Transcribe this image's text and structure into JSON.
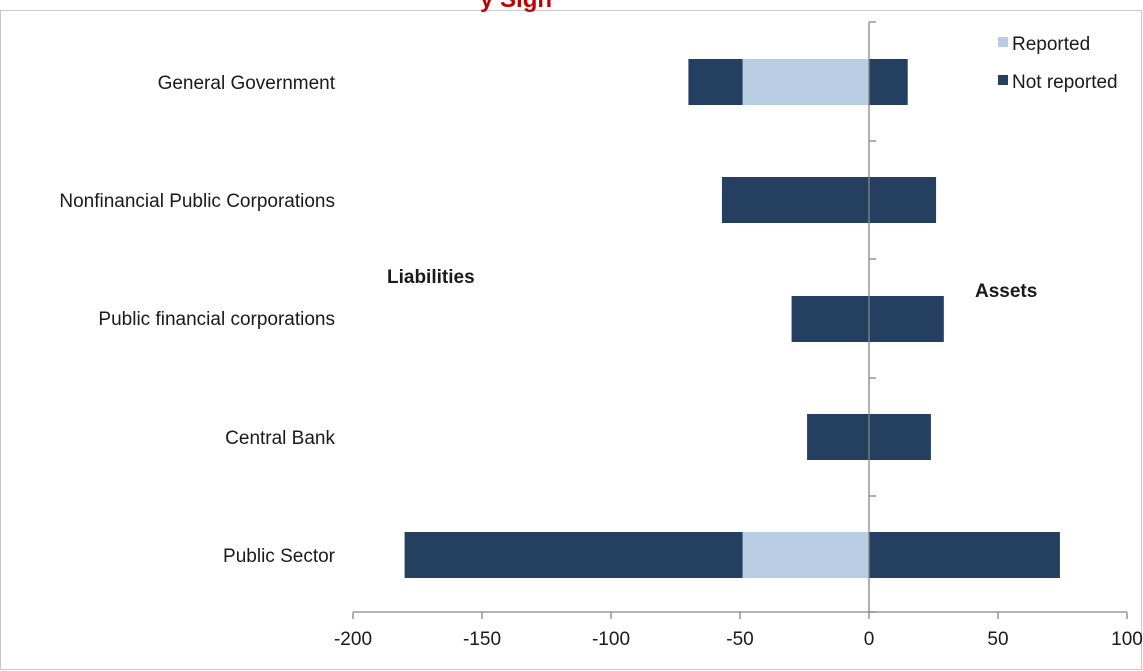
{
  "chart_data": {
    "type": "bar",
    "orientation": "horizontal",
    "stacked": true,
    "title_fragment": "y Sign",
    "categories": [
      "General Government",
      "Nonfinancial Public Corporations",
      "Public financial corporations",
      "Central Bank",
      "Public Sector"
    ],
    "series": [
      {
        "name": "Reported",
        "color": "#b8cce4",
        "liabilities": [
          -49,
          0,
          0,
          0,
          -49
        ],
        "assets": [
          0,
          0,
          0,
          0,
          0
        ]
      },
      {
        "name": "Not reported",
        "color": "#243f60",
        "liabilities": [
          -21,
          -57,
          -30,
          -24,
          -131
        ],
        "assets": [
          15,
          26,
          29,
          24,
          74
        ]
      }
    ],
    "annotations": {
      "left": "Liabilities",
      "right": "Assets"
    },
    "xlim": [
      -200,
      100
    ],
    "xticks": [
      "-200",
      "-150",
      "-100",
      "-50",
      "0",
      "50",
      "100"
    ],
    "legend_position": "top-right",
    "grid": false
  }
}
